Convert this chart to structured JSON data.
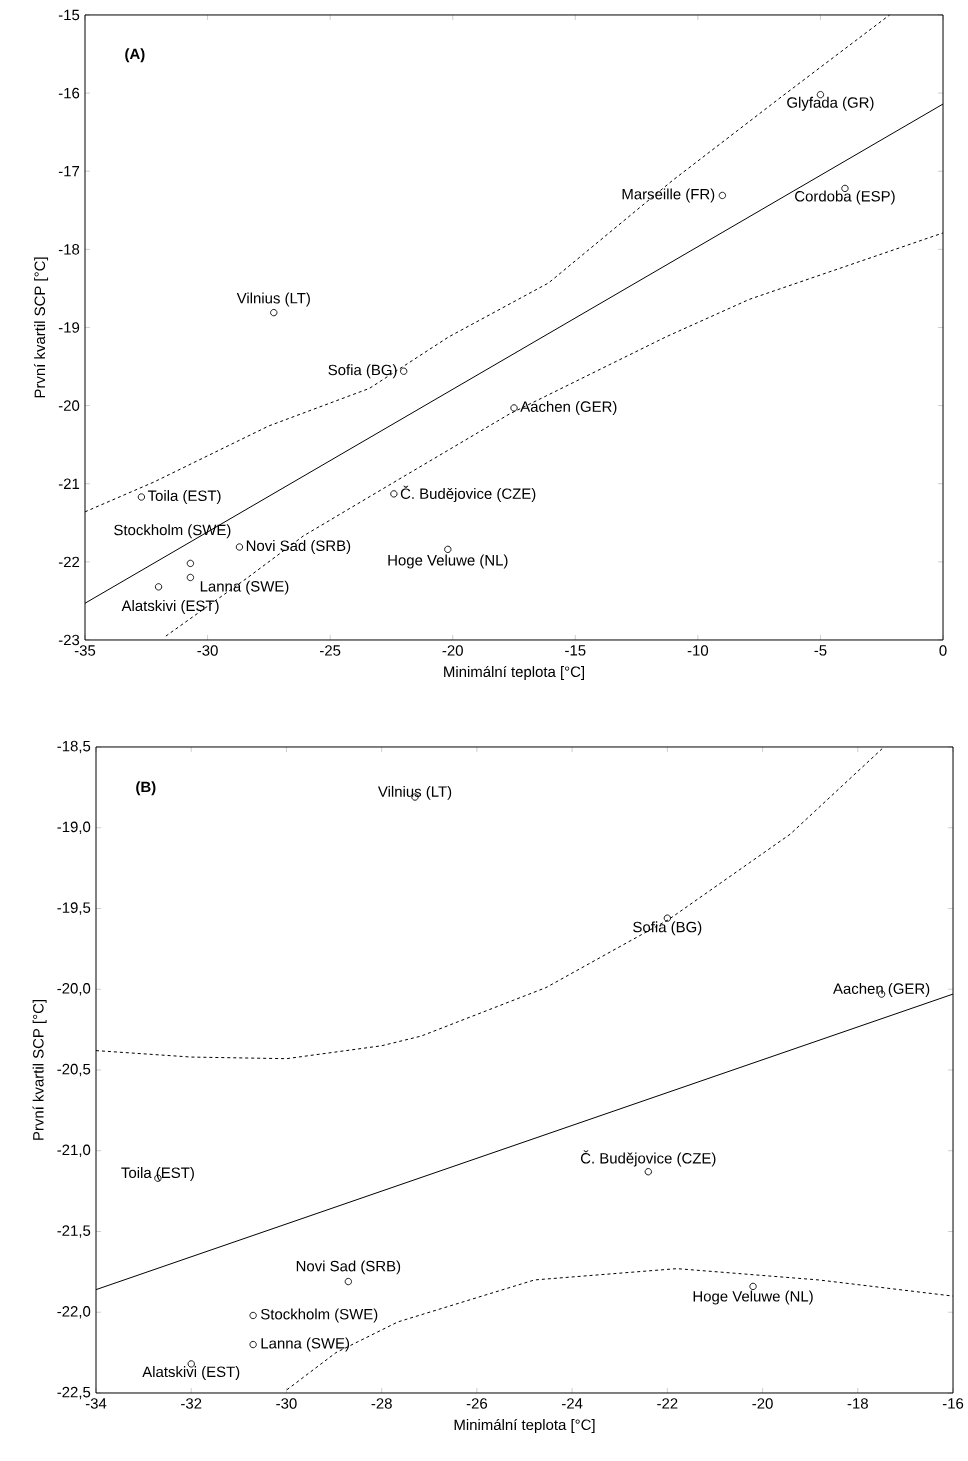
{
  "chart_data": [
    {
      "type": "scatter",
      "xlabel": "Minimální teplota [°C]",
      "ylabel": "První kvartil SCP [°C]",
      "xlim": [
        -35,
        0
      ],
      "ylim": [
        -23,
        -15
      ],
      "xticks": [
        -35,
        -30,
        -25,
        -20,
        -15,
        -10,
        -5,
        0
      ],
      "yticks": [
        -23,
        -22,
        -21,
        -20,
        -19,
        -18,
        -17,
        -16,
        -15
      ],
      "series": [
        {
          "color": "#000000",
          "marker": "circle",
          "x": [
            -27.3,
            -22.0,
            -17.5,
            -32.7,
            -22.4,
            -28.7,
            -20.2,
            -30.7,
            -30.7,
            -32.0,
            -9.0,
            -5.0,
            -4.0
          ],
          "values": [
            -18.81,
            -19.56,
            -20.03,
            -21.17,
            -21.13,
            -21.81,
            -21.84,
            -22.02,
            -22.2,
            -22.32,
            -17.31,
            -16.02,
            -17.22
          ]
        },
        {
          "type": "line",
          "color": "#000000",
          "line_style": "solid",
          "x": [
            -35,
            0
          ],
          "values": [
            -22.53,
            -16.14
          ]
        },
        {
          "type": "line",
          "color": "#000000",
          "line_style": "dashed",
          "x": [
            -35,
            -32.2,
            -27.5,
            -23.4,
            -20.16,
            -16.09,
            -11.04,
            -6.56,
            -2.18
          ],
          "values": [
            -21.36,
            -20.98,
            -20.26,
            -19.78,
            -19.12,
            -18.43,
            -17.12,
            -16.04,
            -15.0
          ]
        },
        {
          "type": "line",
          "color": "#000000",
          "line_style": "dashed",
          "x": [
            -31.7,
            -28.4,
            -26.1,
            -22.5,
            -17.7,
            -11.3,
            -7.9,
            0
          ],
          "values": [
            -22.95,
            -22.21,
            -21.67,
            -21.0,
            -20.11,
            -19.12,
            -18.64,
            -17.79
          ]
        }
      ],
      "annotations": [
        "(A)",
        {
          "text": "Vilnius (LT)",
          "x": -27.3,
          "y": -18.81
        },
        {
          "text": "Sofia (BG)",
          "x": -22.0,
          "y": -19.56
        },
        {
          "text": "Aachen (GER)",
          "x": -17.5,
          "y": -20.03
        },
        {
          "text": "Toila (EST)",
          "x": -32.7,
          "y": -21.17
        },
        {
          "text": "Č. Budějovice (CZE)",
          "x": -22.4,
          "y": -21.13
        },
        {
          "text": "Novi Sad (SRB)",
          "x": -28.7,
          "y": -21.81
        },
        {
          "text": "Hoge Veluwe (NL)",
          "x": -20.2,
          "y": -21.84
        },
        {
          "text": "Stockholm (SWE)",
          "x": -30.7,
          "y": -22.02
        },
        {
          "text": "Lanna (SWE)",
          "x": -30.7,
          "y": -22.2
        },
        {
          "text": "Alatskivi (EST)",
          "x": -32.0,
          "y": -22.32
        },
        {
          "text": "Marseille (FR)",
          "x": -9.0,
          "y": -17.31
        },
        {
          "text": "Glyfada (GR)",
          "x": -5.0,
          "y": -16.02
        },
        {
          "text": "Cordoba (ESP)",
          "x": -4.0,
          "y": -17.22
        }
      ]
    },
    {
      "type": "scatter",
      "xlabel": "Minimální teplota [°C]",
      "ylabel": "První kvartil SCP [°C]",
      "xlim": [
        -34,
        -16
      ],
      "ylim": [
        -22.5,
        -18.5
      ],
      "xticks": [
        -34,
        -32,
        -30,
        -28,
        -26,
        -24,
        -22,
        -20,
        -18,
        -16
      ],
      "yticks": [
        {
          "value": -22.5,
          "label": "-22,5"
        },
        {
          "value": -22.0,
          "label": "-22,0"
        },
        {
          "value": -21.5,
          "label": "-21,5"
        },
        {
          "value": -21.0,
          "label": "-21,0"
        },
        {
          "value": -20.5,
          "label": "-20,5"
        },
        {
          "value": -20.0,
          "label": "-20,0"
        },
        {
          "value": -19.5,
          "label": "-19,5"
        },
        {
          "value": -19.0,
          "label": "-19,0"
        },
        {
          "value": -18.5,
          "label": "-18,5"
        }
      ],
      "series": [
        {
          "color": "#000000",
          "marker": "circle",
          "x": [
            -27.3,
            -22.0,
            -17.5,
            -32.7,
            -22.4,
            -28.7,
            -20.2,
            -30.7,
            -30.7,
            -32.0
          ],
          "values": [
            -18.81,
            -19.56,
            -20.03,
            -21.17,
            -21.13,
            -21.81,
            -21.84,
            -22.02,
            -22.2,
            -22.32
          ]
        },
        {
          "type": "line",
          "color": "#000000",
          "line_style": "solid",
          "x": [
            -34,
            -16
          ],
          "values": [
            -21.86,
            -20.03
          ]
        },
        {
          "type": "line",
          "color": "#000000",
          "line_style": "dashed",
          "x": [
            -34,
            -32,
            -30,
            -28,
            -27.17,
            -24.55,
            -21.98,
            -19.42,
            -17.45
          ],
          "values": [
            -20.38,
            -20.42,
            -20.43,
            -20.35,
            -20.29,
            -19.99,
            -19.57,
            -19.04,
            -18.5
          ]
        },
        {
          "type": "line",
          "color": "#000000",
          "line_style": "dashed",
          "x": [
            -29.99,
            -28.96,
            -27.66,
            -24.79,
            -21.8,
            -18.82,
            -16
          ],
          "values": [
            -22.48,
            -22.25,
            -22.06,
            -21.8,
            -21.73,
            -21.8,
            -21.9
          ]
        }
      ],
      "annotations": [
        "(B)",
        {
          "text": "Vilnius (LT)",
          "x": -27.3,
          "y": -18.81
        },
        {
          "text": "Sofia (BG)",
          "x": -22.0,
          "y": -19.56
        },
        {
          "text": "Aachen (GER)",
          "x": -17.5,
          "y": -20.03
        },
        {
          "text": "Toila (EST)",
          "x": -32.7,
          "y": -21.17
        },
        {
          "text": "Č. Budějovice (CZE)",
          "x": -22.4,
          "y": -21.13
        },
        {
          "text": "Novi Sad (SRB)",
          "x": -28.7,
          "y": -21.81
        },
        {
          "text": "Hoge Veluwe (NL)",
          "x": -20.2,
          "y": -21.84
        },
        {
          "text": "Stockholm (SWE)",
          "x": -30.7,
          "y": -22.02
        },
        {
          "text": "Lanna (SWE)",
          "x": -30.7,
          "y": -22.2
        },
        {
          "text": "Alatskivi (EST)",
          "x": -32.0,
          "y": -22.32
        }
      ]
    }
  ]
}
